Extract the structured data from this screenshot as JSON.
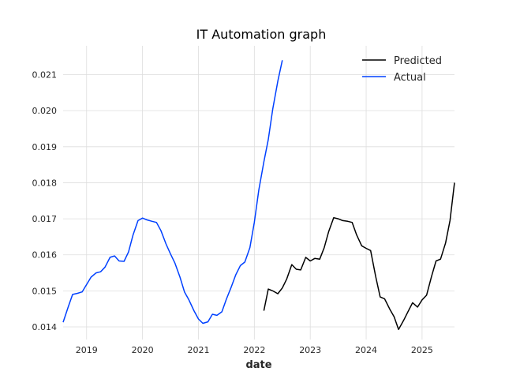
{
  "chart_data": {
    "type": "line",
    "title": "IT Automation graph",
    "xlabel": "date",
    "ylabel": "",
    "xlim": [
      2018.58,
      2025.58
    ],
    "ylim": [
      0.01365,
      0.0218
    ],
    "x_ticks": [
      {
        "value": 2019,
        "label": "2019"
      },
      {
        "value": 2020,
        "label": "2020"
      },
      {
        "value": 2021,
        "label": "2021"
      },
      {
        "value": 2022,
        "label": "2022"
      },
      {
        "value": 2023,
        "label": "2023"
      },
      {
        "value": 2024,
        "label": "2024"
      },
      {
        "value": 2025,
        "label": "2025"
      }
    ],
    "y_ticks": [
      {
        "value": 0.014,
        "label": "0.014"
      },
      {
        "value": 0.015,
        "label": "0.015"
      },
      {
        "value": 0.016,
        "label": "0.016"
      },
      {
        "value": 0.017,
        "label": "0.017"
      },
      {
        "value": 0.018,
        "label": "0.018"
      },
      {
        "value": 0.019,
        "label": "0.019"
      },
      {
        "value": 0.02,
        "label": "0.020"
      },
      {
        "value": 0.021,
        "label": "0.021"
      }
    ],
    "grid": true,
    "legend_position": "top-right",
    "series": [
      {
        "name": "Predicted",
        "color": "#000000",
        "x": [
          2022.17,
          2022.25,
          2022.33,
          2022.42,
          2022.5,
          2022.58,
          2022.67,
          2022.75,
          2022.83,
          2022.92,
          2023.0,
          2023.08,
          2023.17,
          2023.25,
          2023.33,
          2023.42,
          2023.5,
          2023.58,
          2023.67,
          2023.75,
          2023.83,
          2023.92,
          2024.0,
          2024.08,
          2024.17,
          2024.25,
          2024.33,
          2024.42,
          2024.5,
          2024.58,
          2024.67,
          2024.75,
          2024.83,
          2024.92,
          2025.0,
          2025.08,
          2025.17,
          2025.25,
          2025.33,
          2025.42,
          2025.5,
          2025.58
        ],
        "values": [
          0.01445,
          0.01505,
          0.015,
          0.01492,
          0.01508,
          0.01533,
          0.01573,
          0.0156,
          0.01558,
          0.01593,
          0.01583,
          0.0159,
          0.01588,
          0.0162,
          0.01665,
          0.01703,
          0.017,
          0.01695,
          0.01693,
          0.0169,
          0.01655,
          0.01625,
          0.01618,
          0.01612,
          0.0154,
          0.01483,
          0.01478,
          0.0145,
          0.01428,
          0.01393,
          0.01418,
          0.01443,
          0.01467,
          0.01455,
          0.01475,
          0.01488,
          0.0154,
          0.01583,
          0.01588,
          0.01633,
          0.01695,
          0.018
        ]
      },
      {
        "name": "Actual",
        "color": "#0040ff",
        "x": [
          2018.58,
          2018.67,
          2018.75,
          2018.83,
          2018.92,
          2019.0,
          2019.08,
          2019.17,
          2019.25,
          2019.33,
          2019.42,
          2019.5,
          2019.58,
          2019.67,
          2019.75,
          2019.83,
          2019.92,
          2020.0,
          2020.08,
          2020.17,
          2020.25,
          2020.33,
          2020.42,
          2020.5,
          2020.58,
          2020.67,
          2020.75,
          2020.83,
          2020.92,
          2021.0,
          2021.08,
          2021.17,
          2021.25,
          2021.33,
          2021.42,
          2021.5,
          2021.58,
          2021.67,
          2021.75,
          2021.83,
          2021.92,
          2022.0,
          2022.08,
          2022.17,
          2022.25,
          2022.33,
          2022.42,
          2022.5
        ],
        "values": [
          0.01413,
          0.01455,
          0.0149,
          0.01493,
          0.01497,
          0.01518,
          0.01538,
          0.0155,
          0.01553,
          0.01566,
          0.01593,
          0.01597,
          0.01583,
          0.01582,
          0.01608,
          0.01655,
          0.01695,
          0.01702,
          0.01697,
          0.01693,
          0.0169,
          0.01667,
          0.0163,
          0.01603,
          0.01577,
          0.01538,
          0.01497,
          0.01475,
          0.01445,
          0.01422,
          0.0141,
          0.01414,
          0.01435,
          0.01432,
          0.01442,
          0.01477,
          0.01508,
          0.01545,
          0.0157,
          0.0158,
          0.0162,
          0.0169,
          0.0178,
          0.01858,
          0.0192,
          0.02005,
          0.02082,
          0.0214
        ]
      }
    ]
  }
}
